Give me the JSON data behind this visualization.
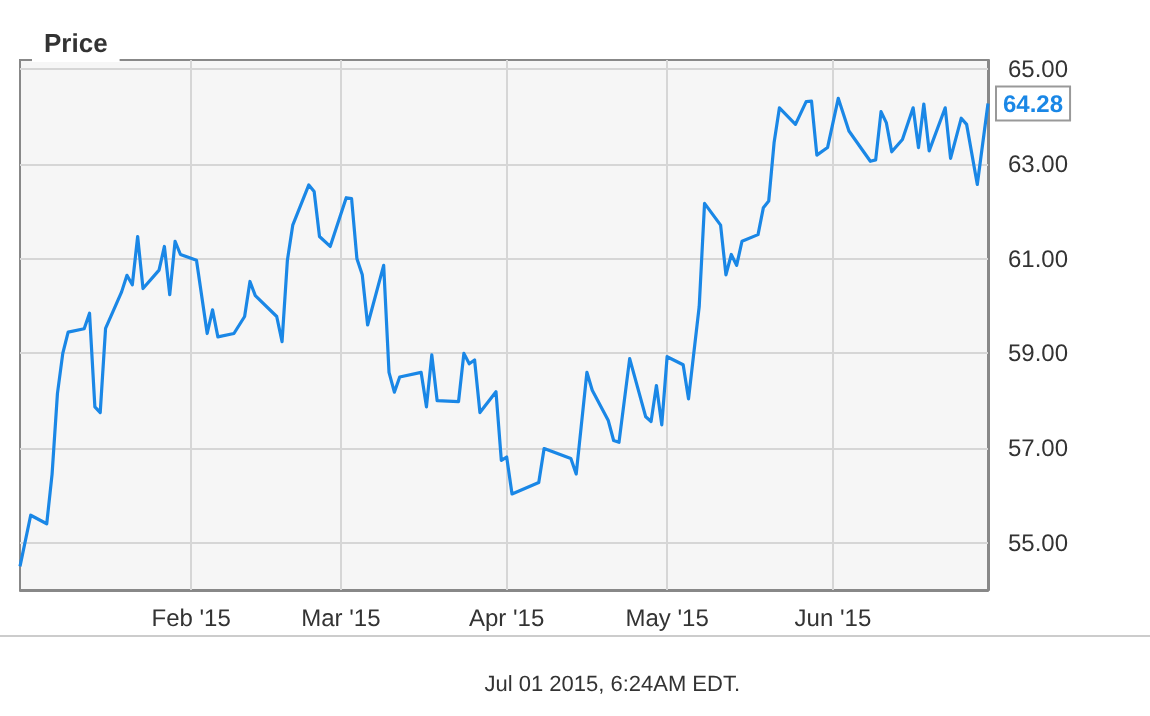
{
  "chart_data": {
    "type": "line",
    "title": "Price",
    "x": [
      "2014-12-31",
      "2015-01-02",
      "2015-01-05",
      "2015-01-06",
      "2015-01-07",
      "2015-01-08",
      "2015-01-09",
      "2015-01-12",
      "2015-01-13",
      "2015-01-14",
      "2015-01-15",
      "2015-01-16",
      "2015-01-19",
      "2015-01-20",
      "2015-01-21",
      "2015-01-22",
      "2015-01-23",
      "2015-01-26",
      "2015-01-27",
      "2015-01-28",
      "2015-01-29",
      "2015-01-30",
      "2015-02-02",
      "2015-02-04",
      "2015-02-05",
      "2015-02-06",
      "2015-02-09",
      "2015-02-11",
      "2015-02-12",
      "2015-02-13",
      "2015-02-17",
      "2015-02-18",
      "2015-02-19",
      "2015-02-20",
      "2015-02-23",
      "2015-02-24",
      "2015-02-25",
      "2015-02-27",
      "2015-03-02",
      "2015-03-03",
      "2015-03-04",
      "2015-03-05",
      "2015-03-06",
      "2015-03-09",
      "2015-03-10",
      "2015-03-11",
      "2015-03-12",
      "2015-03-16",
      "2015-03-17",
      "2015-03-18",
      "2015-03-19",
      "2015-03-23",
      "2015-03-24",
      "2015-03-25",
      "2015-03-26",
      "2015-03-27",
      "2015-03-30",
      "2015-03-31",
      "2015-04-01",
      "2015-04-02",
      "2015-04-07",
      "2015-04-08",
      "2015-04-13",
      "2015-04-14",
      "2015-04-16",
      "2015-04-17",
      "2015-04-20",
      "2015-04-21",
      "2015-04-22",
      "2015-04-24",
      "2015-04-27",
      "2015-04-28",
      "2015-04-29",
      "2015-04-30",
      "2015-05-01",
      "2015-05-04",
      "2015-05-05",
      "2015-05-07",
      "2015-05-08",
      "2015-05-11",
      "2015-05-12",
      "2015-05-13",
      "2015-05-14",
      "2015-05-15",
      "2015-05-18",
      "2015-05-19",
      "2015-05-20",
      "2015-05-21",
      "2015-05-22",
      "2015-05-25",
      "2015-05-27",
      "2015-05-28",
      "2015-05-29",
      "2015-05-31",
      "2015-06-02",
      "2015-06-04",
      "2015-06-08",
      "2015-06-09",
      "2015-06-10",
      "2015-06-11",
      "2015-06-12",
      "2015-06-14",
      "2015-06-16",
      "2015-06-17",
      "2015-06-18",
      "2015-06-19",
      "2015-06-22",
      "2015-06-23",
      "2015-06-25",
      "2015-06-26",
      "2015-06-28",
      "2015-06-30"
    ],
    "series": [
      {
        "color": "#1a87e6",
        "values": [
          54.5,
          55.58,
          55.4,
          56.45,
          58.15,
          59.0,
          59.45,
          59.52,
          59.85,
          57.87,
          57.75,
          59.53,
          60.3,
          60.65,
          60.45,
          61.47,
          60.37,
          60.76,
          61.26,
          60.24,
          61.37,
          61.09,
          60.97,
          59.42,
          59.92,
          59.35,
          59.42,
          59.78,
          60.52,
          60.22,
          59.78,
          59.25,
          60.97,
          61.71,
          62.56,
          62.42,
          61.47,
          61.26,
          62.29,
          62.27,
          61.0,
          60.66,
          59.6,
          60.86,
          58.6,
          58.18,
          58.5,
          58.6,
          57.87,
          58.97,
          58.0,
          57.98,
          59.0,
          58.78,
          58.86,
          57.75,
          58.19,
          56.74,
          56.81,
          56.03,
          56.27,
          56.99,
          56.78,
          56.45,
          58.6,
          58.22,
          57.58,
          57.16,
          57.12,
          58.89,
          57.66,
          57.56,
          58.32,
          57.49,
          58.93,
          58.76,
          58.04,
          59.99,
          62.17,
          61.71,
          60.66,
          61.09,
          60.86,
          61.37,
          61.51,
          62.08,
          62.22,
          63.45,
          64.19,
          63.84,
          64.32,
          64.33,
          63.19,
          63.35,
          64.39,
          63.7,
          63.06,
          63.09,
          64.11,
          63.87,
          63.26,
          63.52,
          64.19,
          63.35,
          64.27,
          63.28,
          64.19,
          63.12,
          63.97,
          63.84,
          62.57,
          64.28
        ]
      }
    ],
    "xlim": [
      "2014-12-31",
      "2015-06-30"
    ],
    "xticks": [
      {
        "value": "2015-02-01",
        "label": "Feb '15"
      },
      {
        "value": "2015-03-01",
        "label": "Mar '15"
      },
      {
        "value": "2015-04-01",
        "label": "Apr '15"
      },
      {
        "value": "2015-05-01",
        "label": "May '15"
      },
      {
        "value": "2015-06-01",
        "label": "Jun '15"
      }
    ],
    "ylim": [
      54,
      65.2
    ],
    "yticks": [
      {
        "value": 55,
        "label": "55.00"
      },
      {
        "value": 57,
        "label": "57.00"
      },
      {
        "value": 59,
        "label": "59.00"
      },
      {
        "value": 61,
        "label": "61.00"
      },
      {
        "value": 63,
        "label": "63.00"
      },
      {
        "value": 65,
        "label": "65.00"
      }
    ],
    "grid": true,
    "marker": "none",
    "line_style": "solid",
    "annotations": [
      {
        "text": "64.28",
        "x": "2015-06-30",
        "y": 64.28
      },
      "Jul 01 2015, 6:24AM EDT."
    ]
  }
}
